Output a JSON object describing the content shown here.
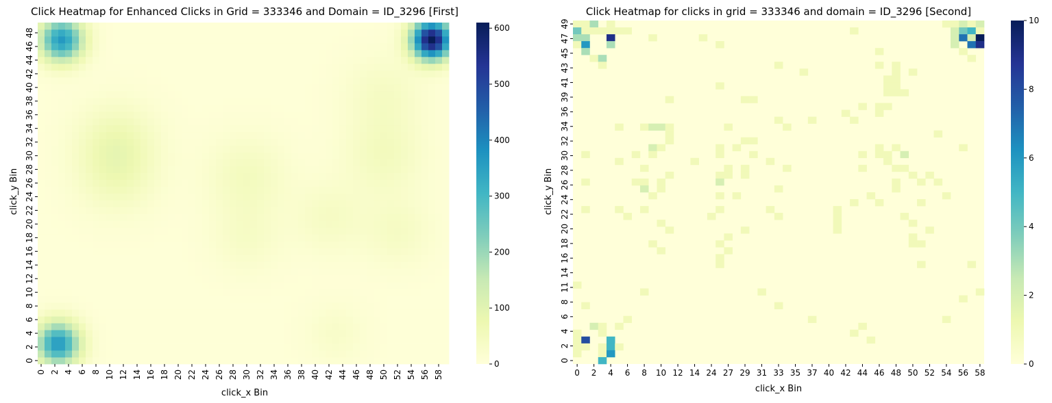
{
  "chart_data": [
    {
      "type": "heatmap",
      "title": "Click Heatmap for Enhanced Clicks in Grid = 333346 and Domain = ID_3296 [First]",
      "xlabel": "click_x Bin",
      "ylabel": "click_y Bin",
      "x_bins": 60,
      "y_bins": 50,
      "x_tick_labels": [
        "0",
        "2",
        "4",
        "6",
        "8",
        "10",
        "12",
        "14",
        "16",
        "18",
        "20",
        "22",
        "24",
        "26",
        "28",
        "30",
        "32",
        "34",
        "36",
        "38",
        "40",
        "42",
        "44",
        "46",
        "48",
        "50",
        "52",
        "54",
        "56",
        "58"
      ],
      "y_tick_labels": [
        "0",
        "2",
        "4",
        "6",
        "8",
        "10",
        "12",
        "14",
        "16",
        "18",
        "20",
        "22",
        "24",
        "26",
        "28",
        "30",
        "32",
        "34",
        "36",
        "38",
        "40",
        "42",
        "44",
        "46",
        "48"
      ],
      "colorbar": {
        "min": 0,
        "max": 610,
        "ticks": [
          0,
          100,
          200,
          300,
          400,
          500,
          600
        ]
      },
      "colormap": "YlGnBu",
      "hotspots": [
        {
          "x": 3,
          "y": 47,
          "value": 360,
          "spread": 2.2
        },
        {
          "x": 2.5,
          "y": 2.5,
          "value": 360,
          "spread": 2.2
        },
        {
          "x": 57,
          "y": 47,
          "value": 610,
          "spread": 2.0
        },
        {
          "x": 11,
          "y": 32,
          "value": 60,
          "spread": 4.0
        },
        {
          "x": 11,
          "y": 27,
          "value": 45,
          "spread": 4.0
        },
        {
          "x": 30,
          "y": 27,
          "value": 45,
          "spread": 4.0
        },
        {
          "x": 50,
          "y": 30,
          "value": 45,
          "spread": 4.0
        },
        {
          "x": 50,
          "y": 39,
          "value": 35,
          "spread": 4.0
        },
        {
          "x": 42,
          "y": 21,
          "value": 35,
          "spread": 3.5
        },
        {
          "x": 52,
          "y": 19,
          "value": 35,
          "spread": 3.5
        },
        {
          "x": 30,
          "y": 18,
          "value": 30,
          "spread": 3.5
        },
        {
          "x": 43,
          "y": 4,
          "value": 25,
          "spread": 3.0
        }
      ]
    },
    {
      "type": "heatmap",
      "title": "Click Heatmap for clicks in grid = 333346 and domain = ID_3296 [Second]",
      "xlabel": "click_x Bin",
      "ylabel": "click_y Bin",
      "x_bins": 49,
      "y_bins": 50,
      "x_tick_labels": [
        "0",
        "2",
        "4",
        "6",
        "8",
        "10",
        "12",
        "14",
        "24",
        "27",
        "29",
        "31",
        "33",
        "35",
        "37",
        "40",
        "42",
        "44",
        "46",
        "48",
        "50",
        "52",
        "54",
        "56",
        "58"
      ],
      "y_tick_labels": [
        "0",
        "2",
        "4",
        "6",
        "8",
        "11",
        "14",
        "16",
        "18",
        "20",
        "22",
        "24",
        "26",
        "28",
        "30",
        "32",
        "34",
        "36",
        "39",
        "41",
        "43",
        "45",
        "47",
        "49"
      ],
      "colorbar": {
        "min": 0,
        "max": 10,
        "ticks": [
          0,
          2,
          4,
          6,
          8,
          10
        ]
      },
      "colormap": "YlGnBu",
      "cells": [
        [
          0,
          49,
          1
        ],
        [
          1,
          49,
          1
        ],
        [
          2,
          49,
          3
        ],
        [
          4,
          49,
          1
        ],
        [
          44,
          49,
          1
        ],
        [
          45,
          49,
          1
        ],
        [
          46,
          49,
          2
        ],
        [
          47,
          49,
          1
        ],
        [
          48,
          49,
          2
        ],
        [
          0,
          48,
          4
        ],
        [
          1,
          48,
          1
        ],
        [
          2,
          48,
          1
        ],
        [
          3,
          48,
          1
        ],
        [
          4,
          48,
          1
        ],
        [
          5,
          48,
          1
        ],
        [
          6,
          48,
          1
        ],
        [
          33,
          48,
          1
        ],
        [
          45,
          48,
          2
        ],
        [
          46,
          48,
          4
        ],
        [
          47,
          48,
          5
        ],
        [
          48,
          48,
          1
        ],
        [
          0,
          47,
          3
        ],
        [
          1,
          47,
          3
        ],
        [
          4,
          47,
          9
        ],
        [
          9,
          47,
          1
        ],
        [
          15,
          47,
          1
        ],
        [
          45,
          47,
          2
        ],
        [
          46,
          47,
          7
        ],
        [
          47,
          47,
          2
        ],
        [
          48,
          47,
          10
        ],
        [
          49,
          47,
          1
        ],
        [
          0,
          46,
          1
        ],
        [
          1,
          46,
          6
        ],
        [
          4,
          46,
          3
        ],
        [
          17,
          46,
          1
        ],
        [
          45,
          46,
          2
        ],
        [
          47,
          46,
          7
        ],
        [
          48,
          46,
          9
        ],
        [
          1,
          45,
          3
        ],
        [
          36,
          45,
          1
        ],
        [
          46,
          45,
          1
        ],
        [
          2,
          44,
          1
        ],
        [
          3,
          44,
          3
        ],
        [
          47,
          44,
          1
        ],
        [
          3,
          43,
          1
        ],
        [
          24,
          43,
          1
        ],
        [
          36,
          43,
          1
        ],
        [
          38,
          43,
          1
        ],
        [
          27,
          42,
          1
        ],
        [
          38,
          42,
          1
        ],
        [
          40,
          42,
          1
        ],
        [
          37,
          41,
          1
        ],
        [
          38,
          41,
          1
        ],
        [
          17,
          40,
          1
        ],
        [
          37,
          40,
          1
        ],
        [
          38,
          40,
          1
        ],
        [
          37,
          39,
          1
        ],
        [
          38,
          39,
          1
        ],
        [
          39,
          39,
          1
        ],
        [
          11,
          38,
          1
        ],
        [
          20,
          38,
          1
        ],
        [
          21,
          38,
          1
        ],
        [
          34,
          37,
          1
        ],
        [
          36,
          37,
          1
        ],
        [
          37,
          37,
          1
        ],
        [
          36,
          36,
          1
        ],
        [
          32,
          36,
          1
        ],
        [
          24,
          35,
          1
        ],
        [
          28,
          35,
          1
        ],
        [
          33,
          35,
          1
        ],
        [
          5,
          34,
          1
        ],
        [
          8,
          34,
          1
        ],
        [
          9,
          34,
          2
        ],
        [
          10,
          34,
          2
        ],
        [
          11,
          34,
          1
        ],
        [
          18,
          34,
          1
        ],
        [
          25,
          34,
          1
        ],
        [
          11,
          33,
          1
        ],
        [
          43,
          33,
          1
        ],
        [
          11,
          32,
          1
        ],
        [
          20,
          32,
          1
        ],
        [
          21,
          32,
          1
        ],
        [
          9,
          31,
          2
        ],
        [
          10,
          31,
          1
        ],
        [
          17,
          31,
          1
        ],
        [
          19,
          31,
          1
        ],
        [
          36,
          31,
          1
        ],
        [
          38,
          31,
          1
        ],
        [
          46,
          31,
          1
        ],
        [
          1,
          30,
          1
        ],
        [
          7,
          30,
          1
        ],
        [
          9,
          30,
          1
        ],
        [
          17,
          30,
          1
        ],
        [
          21,
          30,
          1
        ],
        [
          34,
          30,
          1
        ],
        [
          36,
          30,
          1
        ],
        [
          37,
          30,
          1
        ],
        [
          39,
          30,
          2
        ],
        [
          5,
          29,
          1
        ],
        [
          14,
          29,
          1
        ],
        [
          23,
          29,
          1
        ],
        [
          37,
          29,
          1
        ],
        [
          8,
          28,
          1
        ],
        [
          18,
          28,
          1
        ],
        [
          20,
          28,
          1
        ],
        [
          25,
          28,
          1
        ],
        [
          34,
          28,
          1
        ],
        [
          38,
          28,
          1
        ],
        [
          39,
          28,
          1
        ],
        [
          11,
          27,
          1
        ],
        [
          17,
          27,
          1
        ],
        [
          18,
          27,
          1
        ],
        [
          20,
          27,
          1
        ],
        [
          40,
          27,
          1
        ],
        [
          42,
          27,
          1
        ],
        [
          1,
          26,
          1
        ],
        [
          7,
          26,
          1
        ],
        [
          8,
          26,
          1
        ],
        [
          10,
          26,
          1
        ],
        [
          17,
          26,
          2
        ],
        [
          38,
          26,
          1
        ],
        [
          41,
          26,
          1
        ],
        [
          43,
          26,
          1
        ],
        [
          8,
          25,
          2
        ],
        [
          10,
          25,
          1
        ],
        [
          24,
          25,
          1
        ],
        [
          38,
          25,
          1
        ],
        [
          9,
          24,
          1
        ],
        [
          17,
          24,
          1
        ],
        [
          19,
          24,
          1
        ],
        [
          35,
          24,
          1
        ],
        [
          44,
          24,
          1
        ],
        [
          33,
          23,
          1
        ],
        [
          36,
          23,
          1
        ],
        [
          41,
          23,
          1
        ],
        [
          1,
          22,
          1
        ],
        [
          5,
          22,
          1
        ],
        [
          8,
          22,
          1
        ],
        [
          17,
          22,
          1
        ],
        [
          23,
          22,
          1
        ],
        [
          31,
          22,
          1
        ],
        [
          6,
          21,
          1
        ],
        [
          16,
          21,
          1
        ],
        [
          24,
          21,
          1
        ],
        [
          31,
          21,
          1
        ],
        [
          39,
          21,
          1
        ],
        [
          10,
          20,
          1
        ],
        [
          31,
          20,
          1
        ],
        [
          40,
          20,
          1
        ],
        [
          11,
          19,
          1
        ],
        [
          20,
          19,
          1
        ],
        [
          31,
          19,
          1
        ],
        [
          42,
          19,
          1
        ],
        [
          18,
          18,
          1
        ],
        [
          40,
          18,
          1
        ],
        [
          9,
          17,
          1
        ],
        [
          17,
          17,
          1
        ],
        [
          40,
          17,
          1
        ],
        [
          41,
          17,
          1
        ],
        [
          10,
          16,
          1
        ],
        [
          18,
          16,
          1
        ],
        [
          17,
          15,
          1
        ],
        [
          17,
          14,
          1
        ],
        [
          41,
          14,
          1
        ],
        [
          47,
          14,
          1
        ],
        [
          49,
          13,
          1
        ],
        [
          0,
          11,
          1
        ],
        [
          8,
          10,
          1
        ],
        [
          22,
          10,
          1
        ],
        [
          48,
          10,
          1
        ],
        [
          46,
          9,
          1
        ],
        [
          1,
          8,
          1
        ],
        [
          24,
          8,
          1
        ],
        [
          6,
          6,
          1
        ],
        [
          28,
          6,
          1
        ],
        [
          44,
          6,
          1
        ],
        [
          2,
          5,
          2
        ],
        [
          3,
          5,
          1
        ],
        [
          5,
          5,
          1
        ],
        [
          34,
          5,
          1
        ],
        [
          0,
          4,
          1
        ],
        [
          3,
          4,
          1
        ],
        [
          33,
          4,
          1
        ],
        [
          0,
          3,
          1
        ],
        [
          1,
          3,
          8
        ],
        [
          4,
          3,
          5
        ],
        [
          35,
          3,
          1
        ],
        [
          0,
          2,
          1
        ],
        [
          1,
          2,
          1
        ],
        [
          3,
          2,
          1
        ],
        [
          4,
          2,
          5
        ],
        [
          5,
          2,
          1
        ],
        [
          0,
          1,
          1
        ],
        [
          3,
          1,
          1
        ],
        [
          4,
          1,
          6
        ],
        [
          3,
          0,
          5
        ]
      ]
    }
  ]
}
